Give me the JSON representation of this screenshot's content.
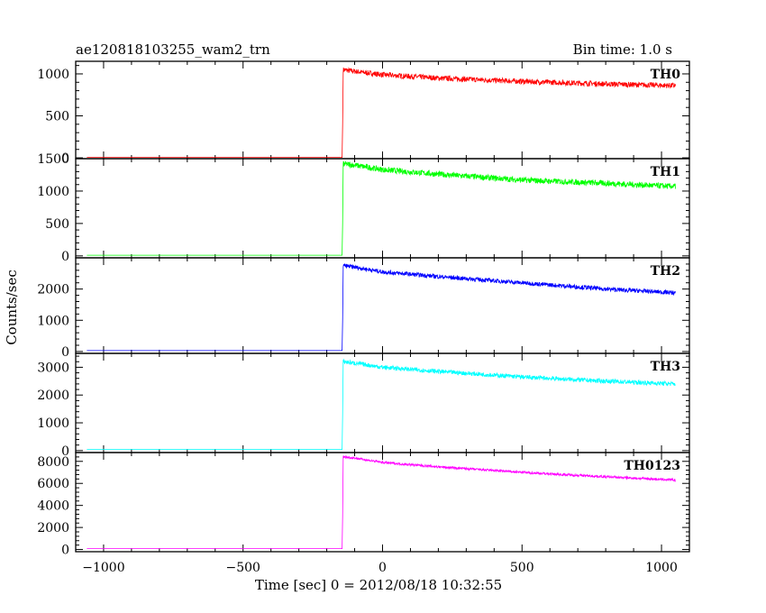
{
  "chart_data": {
    "type": "line",
    "title": "ae120818103255_wam2_trn",
    "bin_time_label": "Bin time: 1.0 s",
    "xlabel": "Time [sec] 0 = 2012/08/18 10:32:55",
    "ylabel": "Counts/sec",
    "xlim": [
      -1100,
      1100
    ],
    "x_ticks": [
      -1000,
      -500,
      0,
      500,
      1000
    ],
    "x_tick_labels": [
      "−1000",
      "−500",
      "0",
      "500",
      "1000"
    ],
    "grid": false,
    "panels": [
      {
        "name": "TH0",
        "color": "#ff0000",
        "ylim": [
          -10,
          1150
        ],
        "y_ticks": [
          0,
          500,
          1000
        ],
        "y_tick_labels": [
          "0",
          "500",
          "1000"
        ],
        "points": [
          [
            -1060,
            5
          ],
          [
            -145,
            5
          ],
          [
            -143,
            400
          ],
          [
            -141,
            1050
          ],
          [
            -100,
            1030
          ],
          [
            0,
            990
          ],
          [
            200,
            950
          ],
          [
            500,
            910
          ],
          [
            800,
            880
          ],
          [
            1050,
            860
          ]
        ],
        "noise": 32
      },
      {
        "name": "TH1",
        "color": "#00ff00",
        "ylim": [
          -30,
          1500
        ],
        "y_ticks": [
          0,
          500,
          1000,
          1500
        ],
        "y_tick_labels": [
          "0",
          "500",
          "1000",
          "1500"
        ],
        "points": [
          [
            -1060,
            10
          ],
          [
            -145,
            10
          ],
          [
            -143,
            500
          ],
          [
            -141,
            1420
          ],
          [
            -100,
            1400
          ],
          [
            0,
            1330
          ],
          [
            200,
            1260
          ],
          [
            500,
            1170
          ],
          [
            800,
            1120
          ],
          [
            1050,
            1070
          ]
        ],
        "noise": 45
      },
      {
        "name": "TH2",
        "color": "#0000ff",
        "ylim": [
          -60,
          3000
        ],
        "y_ticks": [
          0,
          1000,
          2000
        ],
        "y_tick_labels": [
          "0",
          "1000",
          "2000"
        ],
        "points": [
          [
            -1060,
            30
          ],
          [
            -145,
            30
          ],
          [
            -143,
            1000
          ],
          [
            -141,
            2750
          ],
          [
            -100,
            2700
          ],
          [
            0,
            2550
          ],
          [
            200,
            2400
          ],
          [
            500,
            2200
          ],
          [
            800,
            2000
          ],
          [
            1050,
            1880
          ]
        ],
        "noise": 70
      },
      {
        "name": "TH3",
        "color": "#00ffff",
        "ylim": [
          -70,
          3500
        ],
        "y_ticks": [
          0,
          1000,
          2000,
          3000
        ],
        "y_tick_labels": [
          "0",
          "1000",
          "2000",
          "3000"
        ],
        "points": [
          [
            -1060,
            40
          ],
          [
            -145,
            40
          ],
          [
            -143,
            1300
          ],
          [
            -141,
            3200
          ],
          [
            -100,
            3150
          ],
          [
            0,
            3000
          ],
          [
            200,
            2850
          ],
          [
            500,
            2650
          ],
          [
            800,
            2500
          ],
          [
            1050,
            2400
          ]
        ],
        "noise": 80
      },
      {
        "name": "TH0123",
        "color": "#ff00ff",
        "ylim": [
          -200,
          8800
        ],
        "y_ticks": [
          0,
          2000,
          4000,
          6000,
          8000
        ],
        "y_tick_labels": [
          "0",
          "2000",
          "4000",
          "6000",
          "8000"
        ],
        "points": [
          [
            -1060,
            80
          ],
          [
            -145,
            80
          ],
          [
            -143,
            3000
          ],
          [
            -141,
            8400
          ],
          [
            -100,
            8300
          ],
          [
            0,
            7900
          ],
          [
            200,
            7500
          ],
          [
            500,
            7000
          ],
          [
            800,
            6600
          ],
          [
            1050,
            6300
          ]
        ],
        "noise": 110
      }
    ]
  }
}
